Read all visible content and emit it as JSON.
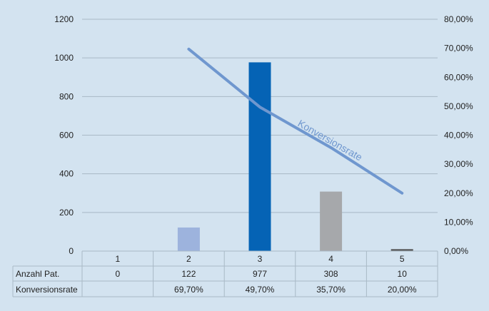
{
  "colors": {
    "background": "#d3e3f0",
    "gridline": "#a9b9c6",
    "line": "#6f97cf",
    "bars": [
      "#9db3dd",
      "#9db3dd",
      "#0563b5",
      "#a6a8ab",
      "#555555"
    ],
    "table_border": "#a9b9c6"
  },
  "chart_data": {
    "type": "bar",
    "categories": [
      "1",
      "2",
      "3",
      "4",
      "5"
    ],
    "series": [
      {
        "name": "Anzahl Pat.",
        "type": "bar",
        "axis": "left",
        "values": [
          0,
          122,
          977,
          308,
          10
        ],
        "labels": [
          "0",
          "122",
          "977",
          "308",
          "10"
        ]
      },
      {
        "name": "Konversionsrate",
        "type": "line",
        "axis": "right",
        "values": [
          null,
          69.7,
          49.7,
          35.7,
          20.0
        ],
        "labels": [
          "",
          "69,70%",
          "49,70%",
          "35,70%",
          "20,00%"
        ]
      }
    ],
    "y_left": {
      "lim": [
        0,
        1200
      ],
      "ticks": [
        "0",
        "200",
        "400",
        "600",
        "800",
        "1000",
        "1200"
      ]
    },
    "y_right": {
      "lim": [
        0,
        80
      ],
      "ticks": [
        "0,00%",
        "10,00%",
        "20,00%",
        "30,00%",
        "40,00%",
        "50,00%",
        "60,00%",
        "70,00%",
        "80,00%"
      ]
    },
    "line_annotation": "Konversionsrate",
    "grid": true,
    "legend": "data-table below chart"
  }
}
